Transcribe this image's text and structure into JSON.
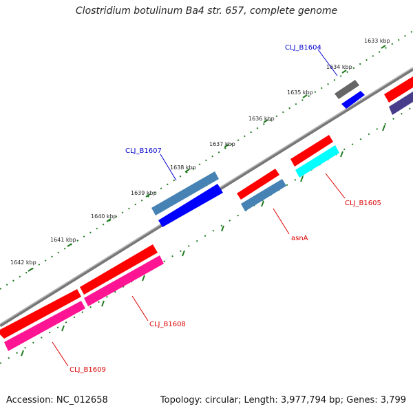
{
  "title": "Clostridium botulinum Ba4 str. 657, complete genome",
  "footer": {
    "accession": "Accession: NC_012658",
    "summary": "Topology: circular; Length: 3,977,794 bp; Genes: 3,799"
  },
  "ticks": [
    "1633 kbp",
    "1634 kbp",
    "1635 kbp",
    "1636 kbp",
    "1637 kbp",
    "1638 kbp",
    "1639 kbp",
    "1640 kbp",
    "1641 kbp",
    "1642 kbp"
  ],
  "genes": [
    {
      "label": "CLJ_B1604",
      "label_color": "#0000cc"
    },
    {
      "label": "CLJ_B1605",
      "label_color": "#dd0000"
    },
    {
      "label": "asnA",
      "label_color": "#dd0000"
    },
    {
      "label": "CLJ_B1607",
      "label_color": "#0000cc"
    },
    {
      "label": "CLJ_B1608",
      "label_color": "#dd0000"
    },
    {
      "label": "CLJ_B1609",
      "label_color": "#dd0000"
    }
  ],
  "colors": {
    "backbone": "#888888",
    "tick_marks": "#1e7a1e",
    "red_gene": "#ff0000",
    "pink_gene": "#ff1493",
    "steelblue_gene": "#4682b4",
    "blue_gene": "#0000ff",
    "cyan_gene": "#00ffff",
    "gray_gene": "#666666",
    "slate_gene": "#483d8b"
  }
}
